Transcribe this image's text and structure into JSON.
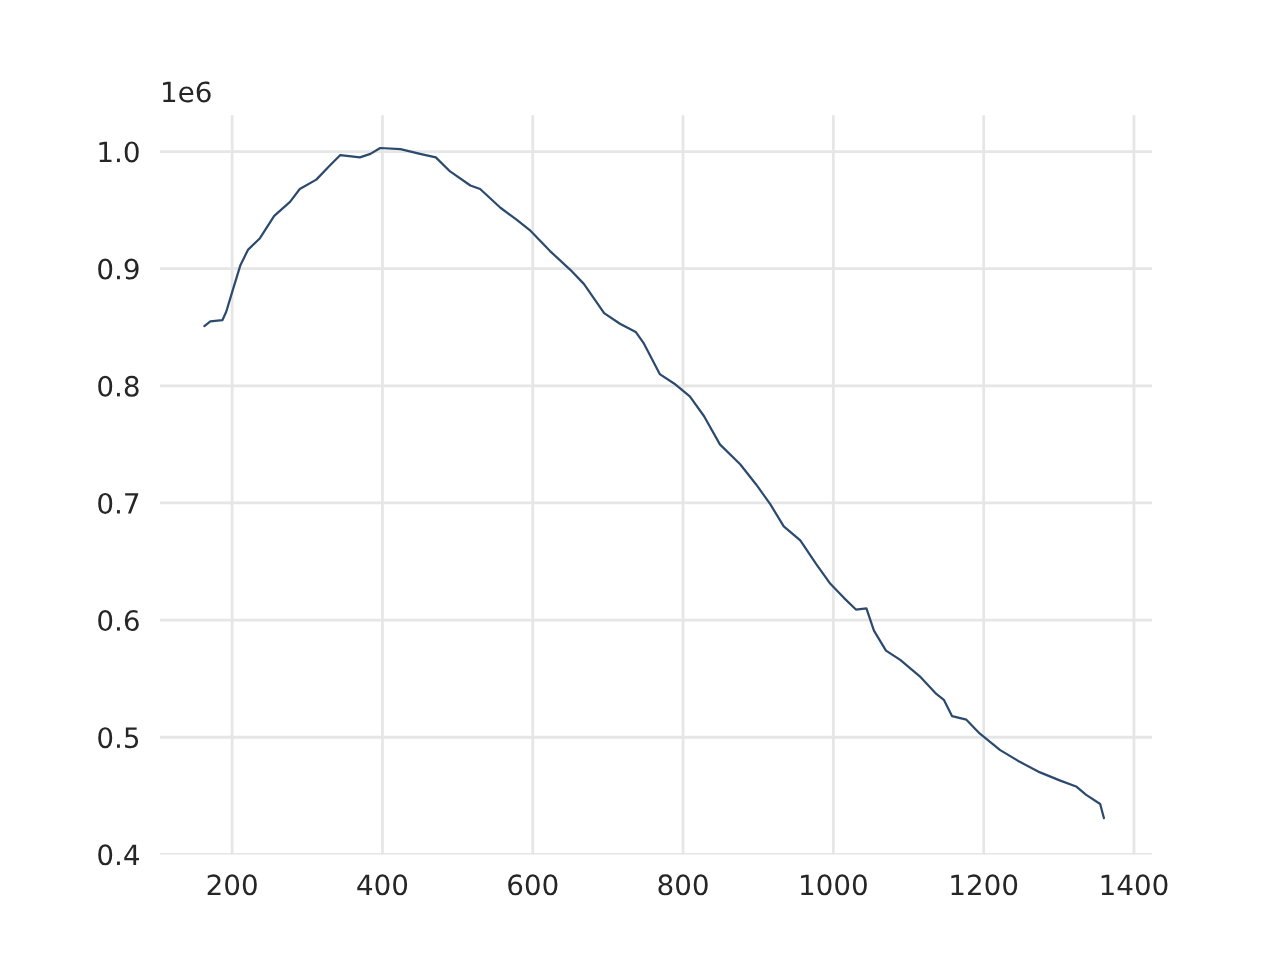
{
  "chart_data": {
    "type": "line",
    "x": [
      163,
      171,
      187,
      192,
      200,
      211,
      221,
      237,
      256,
      277,
      290,
      312,
      330,
      344,
      370,
      384,
      397,
      424,
      450,
      471,
      490,
      517,
      530,
      557,
      578,
      596,
      623,
      650,
      668,
      695,
      716,
      737,
      748,
      769,
      788,
      809,
      828,
      849,
      876,
      897,
      916,
      934,
      956,
      977,
      996,
      1014,
      1030,
      1044,
      1054,
      1070,
      1089,
      1115,
      1137,
      1147,
      1158,
      1177,
      1195,
      1222,
      1248,
      1275,
      1302,
      1323,
      1336,
      1355,
      1360
    ],
    "series": [
      {
        "color": "#2c4a6e",
        "values": [
          0.851,
          0.855,
          0.856,
          0.863,
          0.88,
          0.903,
          0.916,
          0.926,
          0.945,
          0.957,
          0.968,
          0.976,
          0.988,
          0.997,
          0.995,
          0.998,
          1.003,
          1.002,
          0.998,
          0.995,
          0.983,
          0.971,
          0.968,
          0.952,
          0.942,
          0.933,
          0.915,
          0.899,
          0.887,
          0.862,
          0.853,
          0.846,
          0.836,
          0.81,
          0.802,
          0.791,
          0.774,
          0.75,
          0.733,
          0.716,
          0.699,
          0.68,
          0.668,
          0.648,
          0.631,
          0.619,
          0.609,
          0.61,
          0.591,
          0.574,
          0.566,
          0.552,
          0.537,
          0.532,
          0.518,
          0.515,
          0.503,
          0.489,
          0.479,
          0.47,
          0.463,
          0.458,
          0.451,
          0.443,
          0.431
        ]
      }
    ],
    "xlim": [
      104,
      1424
    ],
    "ylim": [
      0.4,
      1.031
    ],
    "xticks": [
      200,
      400,
      600,
      800,
      1000,
      1200,
      1400
    ],
    "yticks": [
      0.4,
      0.5,
      0.6,
      0.7,
      0.8,
      0.9,
      {
        "value": 1.0,
        "label": "1.0"
      }
    ],
    "annotations": [
      "1e6"
    ],
    "grid": true
  }
}
